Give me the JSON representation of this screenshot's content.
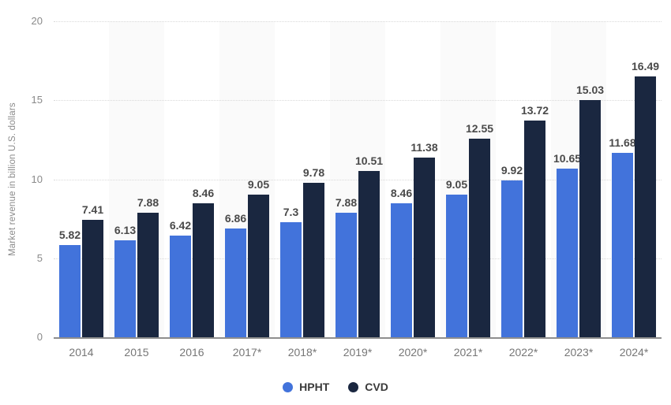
{
  "chart_data": {
    "type": "bar",
    "title": "",
    "xlabel": "",
    "ylabel": "Market revenue in billion U.S. dollars",
    "ylim": [
      0,
      20
    ],
    "yticks": [
      0,
      5,
      10,
      15,
      20
    ],
    "grid": "horizontal dotted lines at each y tick",
    "background": "alternating light-gray category bands",
    "legend_position": "bottom-center",
    "categories": [
      "2014",
      "2015",
      "2016",
      "2017*",
      "2018*",
      "2019*",
      "2020*",
      "2021*",
      "2022*",
      "2023*",
      "2024*"
    ],
    "series": [
      {
        "name": "HPHT",
        "color": "#4273DB",
        "values": [
          5.82,
          6.13,
          6.42,
          6.86,
          7.3,
          7.88,
          8.46,
          9.05,
          9.92,
          10.65,
          11.68
        ]
      },
      {
        "name": "CVD",
        "color": "#1A2740",
        "values": [
          7.41,
          7.88,
          8.46,
          9.05,
          9.78,
          10.51,
          11.38,
          12.55,
          13.72,
          15.03,
          16.49
        ]
      }
    ]
  },
  "colors": {
    "stripe": "#fafafa",
    "gridline": "#d9d9d9",
    "axis_line": "#8e8e8e",
    "tick_label": "#8a8a8a",
    "x_label": "#767676",
    "value_label": "#4a4a4a",
    "legend_label": "#3a3a3a"
  }
}
